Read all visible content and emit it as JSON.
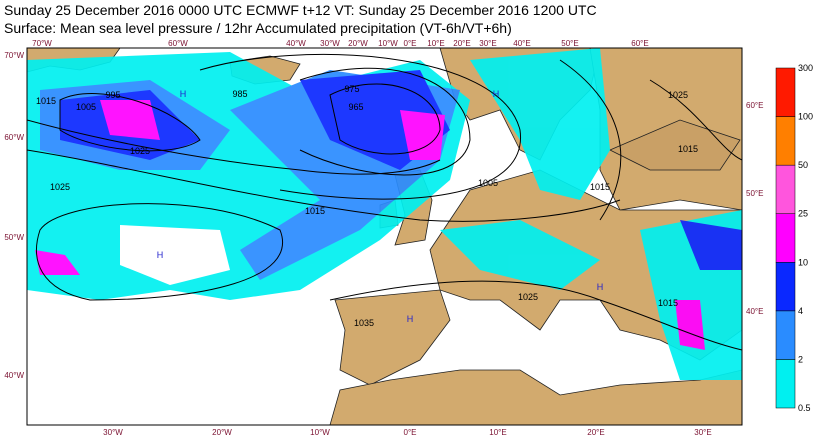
{
  "header": {
    "line1": "Sunday 25 December 2016 0000 UTC  ECMWF  t+12  VT: Sunday 25 December 2016 1200 UTC",
    "line2": "Surface: Mean sea level pressure / 12hr Accumulated precipitation (VT-6h/VT+6h)"
  },
  "colorbar": {
    "levels": [
      0.5,
      2,
      4,
      10,
      25,
      50,
      100,
      300
    ],
    "colors": [
      "#00f0f0",
      "#2a8cff",
      "#0a28ff",
      "#ff00ff",
      "#ff55dd",
      "#ff7f00",
      "#ff1a00"
    ]
  },
  "map": {
    "top_labels": [
      "70°W",
      "60°W",
      "40°W",
      "30°W",
      "20°W",
      "10°W",
      "0°E",
      "10°E",
      "20°E",
      "30°E",
      "40°E",
      "50°E",
      "60°E"
    ],
    "bottom_labels": [
      "30°W",
      "20°W",
      "10°W",
      "0°E",
      "10°E",
      "20°E",
      "30°E"
    ],
    "left_labels": [
      "70°W",
      "60°W",
      "50°W",
      "40°W"
    ],
    "right_labels": [
      "60°E",
      "50°E",
      "40°E"
    ],
    "isobar_labels": [
      "1015",
      "1005",
      "995",
      "985",
      "975",
      "965",
      "1025",
      "1015",
      "1005",
      "1025",
      "1035",
      "1025",
      "1015",
      "1015",
      "1015",
      "1025"
    ],
    "centres": [
      "H",
      "H",
      "H",
      "H",
      "H"
    ]
  }
}
